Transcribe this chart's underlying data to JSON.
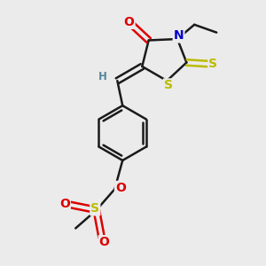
{
  "bg_color": "#ebebeb",
  "bond_color": "#1a1a1a",
  "atom_colors": {
    "O": "#dd0000",
    "N": "#0000cc",
    "S": "#bbbb00",
    "H": "#558899",
    "C": "#1a1a1a"
  }
}
